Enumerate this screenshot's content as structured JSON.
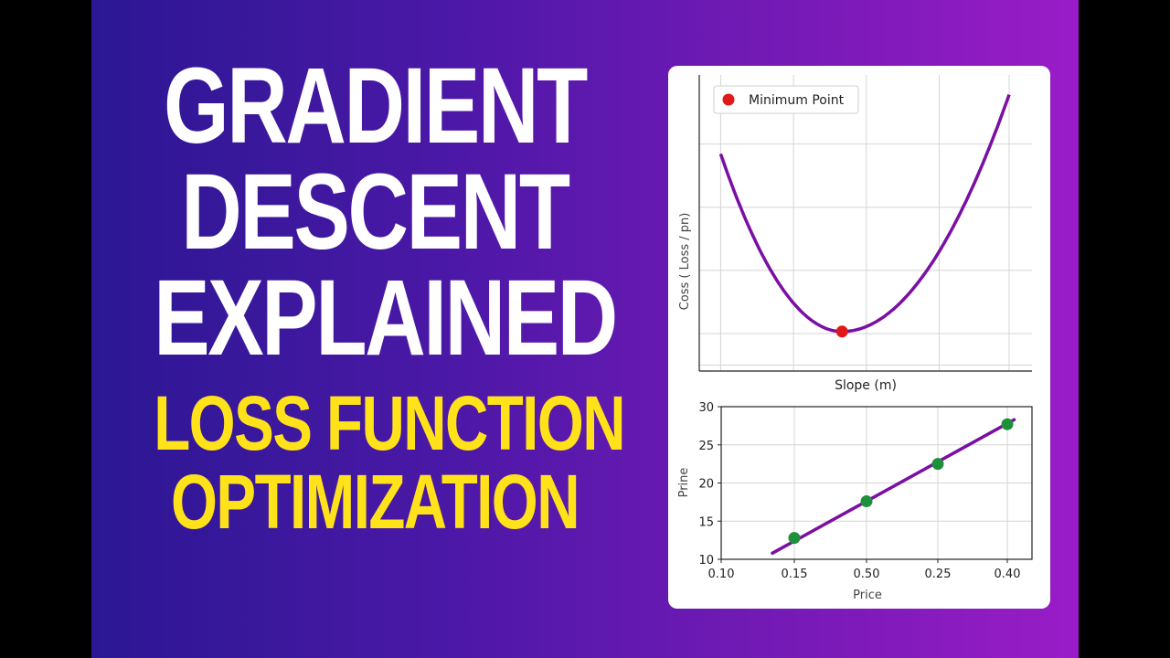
{
  "headline": {
    "line1": "GRADIENT",
    "line2": "DESCENT",
    "line3": "EXPLAINED",
    "sub1": "LOSS FUNCTION",
    "sub2": "OPTIMIZATION"
  },
  "colors": {
    "curve": "#7a0fa3",
    "min_point": "#e01a1a",
    "scatter_point": "#1e8f3a",
    "grid": "#d4d4d4"
  },
  "chart_data": [
    {
      "type": "line",
      "xlabel": "Slope (m)",
      "ylabel": "Coss ( Loss / pn)",
      "xlim": [
        -1,
        1.33
      ],
      "ylim": [
        -0.05,
        1.45
      ],
      "x_tick_labels": [],
      "y_tick_labels": [],
      "grid": true,
      "legend": {
        "position": "top-left",
        "entries": [
          "Minimum Point"
        ]
      },
      "curve": {
        "formula": "parabola",
        "x_min": -0.85,
        "x_max": 1.17,
        "vertex_x": 0.0,
        "vertex_y": 0.15
      },
      "minimum_point": {
        "name": "Minimum Point",
        "x": 0.0,
        "y": 0.15
      }
    },
    {
      "type": "scatter",
      "xlabel": "Price",
      "ylabel": "Prine",
      "x_tick_labels": [
        "0.10",
        "0.15",
        "0.50",
        "0.25",
        "0.40"
      ],
      "y_tick_labels": [
        "10",
        "15",
        "20",
        "25",
        "30"
      ],
      "ylim": [
        10,
        30
      ],
      "grid": true,
      "points_x_index": [
        1,
        2,
        3,
        4
      ],
      "points_y": [
        12.8,
        17.6,
        22.5,
        27.7
      ],
      "fit_line": {
        "x_index": [
          0.7,
          4.1
        ],
        "y": [
          10.8,
          28.3
        ]
      }
    }
  ]
}
